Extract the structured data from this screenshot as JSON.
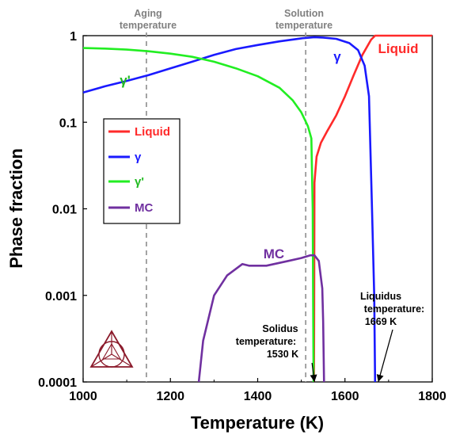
{
  "chart_data": {
    "type": "line",
    "xlabel": "Temperature (K)",
    "ylabel": "Phase fraction",
    "xlim": [
      1000,
      1800
    ],
    "ylim": [
      0.0001,
      1
    ],
    "yscale": "log",
    "x_ticks": [
      "1000",
      "1200",
      "1400",
      "1600",
      "1800"
    ],
    "y_ticks": [
      "0.0001",
      "0.001",
      "0.01",
      "0.1",
      "1"
    ],
    "grid": false,
    "legend_position": "left",
    "series": [
      {
        "name": "Liquid",
        "label": "Liquid",
        "color": "#ff2a2a",
        "points": [
          [
            1529,
            0.0001
          ],
          [
            1530,
            0.02
          ],
          [
            1535,
            0.04
          ],
          [
            1545,
            0.058
          ],
          [
            1560,
            0.08
          ],
          [
            1580,
            0.12
          ],
          [
            1600,
            0.2
          ],
          [
            1620,
            0.35
          ],
          [
            1640,
            0.6
          ],
          [
            1660,
            0.9
          ],
          [
            1669,
            1.0
          ],
          [
            1800,
            1.0
          ]
        ]
      },
      {
        "name": "γ",
        "label": "γ",
        "color": "#1a1aff",
        "points": [
          [
            1000,
            0.22
          ],
          [
            1050,
            0.26
          ],
          [
            1100,
            0.3
          ],
          [
            1150,
            0.35
          ],
          [
            1200,
            0.42
          ],
          [
            1250,
            0.5
          ],
          [
            1300,
            0.6
          ],
          [
            1350,
            0.7
          ],
          [
            1400,
            0.78
          ],
          [
            1450,
            0.86
          ],
          [
            1500,
            0.93
          ],
          [
            1530,
            0.96
          ],
          [
            1550,
            0.95
          ],
          [
            1580,
            0.92
          ],
          [
            1610,
            0.82
          ],
          [
            1630,
            0.68
          ],
          [
            1645,
            0.45
          ],
          [
            1655,
            0.2
          ],
          [
            1662,
            0.01
          ],
          [
            1667,
            0.001
          ],
          [
            1669,
            0.0001
          ]
        ]
      },
      {
        "name": "γ'",
        "label": "γ'",
        "color": "#22ee22",
        "points": [
          [
            1000,
            0.72
          ],
          [
            1050,
            0.71
          ],
          [
            1100,
            0.69
          ],
          [
            1150,
            0.66
          ],
          [
            1200,
            0.62
          ],
          [
            1250,
            0.57
          ],
          [
            1300,
            0.5
          ],
          [
            1350,
            0.42
          ],
          [
            1400,
            0.34
          ],
          [
            1450,
            0.25
          ],
          [
            1480,
            0.18
          ],
          [
            1500,
            0.13
          ],
          [
            1515,
            0.09
          ],
          [
            1523,
            0.065
          ],
          [
            1526,
            0.01
          ],
          [
            1527,
            0.001
          ],
          [
            1528,
            0.0001
          ]
        ]
      },
      {
        "name": "MC",
        "label": "MC",
        "color": "#7030a0",
        "points": [
          [
            1265,
            0.0001
          ],
          [
            1275,
            0.0003
          ],
          [
            1300,
            0.001
          ],
          [
            1330,
            0.0017
          ],
          [
            1365,
            0.0023
          ],
          [
            1380,
            0.0022
          ],
          [
            1420,
            0.0022
          ],
          [
            1470,
            0.0025
          ],
          [
            1500,
            0.0027
          ],
          [
            1520,
            0.0029
          ],
          [
            1530,
            0.0029
          ],
          [
            1540,
            0.0025
          ],
          [
            1548,
            0.0012
          ],
          [
            1550,
            0.0005
          ],
          [
            1552,
            0.0001
          ]
        ]
      }
    ],
    "annotations": {
      "aging": {
        "text_line1": "Aging",
        "text_line2": "temperature",
        "x": 1145
      },
      "solution": {
        "text_line1": "Solution",
        "text_line2": "temperature",
        "x": 1510
      },
      "solidus": {
        "text_line1": "Solidus",
        "text_line2": "temperature:",
        "text_line3": "1530 K",
        "x": 1530
      },
      "liquidus": {
        "text_line1": "Liquidus",
        "text_line2": "temperature:",
        "text_line3": "1669 K",
        "x": 1669
      }
    }
  }
}
